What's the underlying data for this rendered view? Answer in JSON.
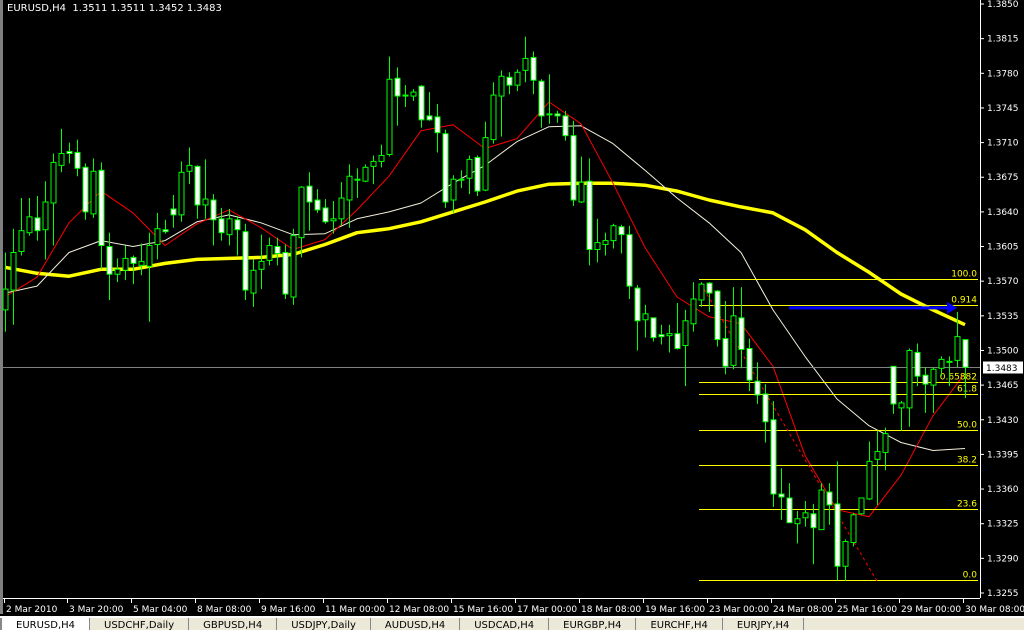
{
  "header": {
    "symbol": "EURUSD,H4",
    "ohlc": "1.3511 1.3511 1.3452 1.3483"
  },
  "tabs": [
    {
      "label": "EURUSD,H4",
      "active": true
    },
    {
      "label": "USDCHF,Daily"
    },
    {
      "label": "GBPUSD,H4"
    },
    {
      "label": "USDJPY,Daily"
    },
    {
      "label": "AUDUSD,H4"
    },
    {
      "label": "USDCAD,H4"
    },
    {
      "label": "EURGBP,H4"
    },
    {
      "label": "EURCHF,H4"
    },
    {
      "label": "EURJPY,H4"
    }
  ],
  "colors": {
    "background": "#000000",
    "candle_outline": "#00ff00",
    "bull_fill": "#000000",
    "bear_fill": "#ffffff",
    "ma_fast": "#ff0000",
    "ma_mid": "#f5f0dc",
    "ma_slow": "#ffff00",
    "fib": "#ffff00",
    "arrow": "#0000ff",
    "price_line": "#808080"
  },
  "chart_data": {
    "type": "candlestick",
    "symbol": "EURUSD",
    "timeframe": "H4",
    "ylim": [
      1.3255,
      1.385
    ],
    "y_ticks": [
      "1.3850",
      "1.3815",
      "1.3780",
      "1.3745",
      "1.3710",
      "1.3675",
      "1.3640",
      "1.3605",
      "1.3570",
      "1.3535",
      "1.3500",
      "1.3465",
      "1.3430",
      "1.3395",
      "1.3360",
      "1.3325",
      "1.3290",
      "1.3255"
    ],
    "x_ticks": [
      "2 Mar 2010",
      "3 Mar 20:00",
      "5 Mar 04:00",
      "8 Mar 08:00",
      "9 Mar 16:00",
      "11 Mar 00:00",
      "12 Mar 08:00",
      "15 Mar 16:00",
      "17 Mar 00:00",
      "18 Mar 08:00",
      "19 Mar 16:00",
      "23 Mar 00:00",
      "24 Mar 08:00",
      "25 Mar 16:00",
      "29 Mar 00:00",
      "30 Mar 08:00"
    ],
    "current_price": "1.3483",
    "candles_ohlc": [
      [
        1.3541,
        1.3599,
        1.3519,
        1.3562
      ],
      [
        1.3561,
        1.3623,
        1.3526,
        1.3599
      ],
      [
        1.36,
        1.3654,
        1.3596,
        1.3621
      ],
      [
        1.3619,
        1.3654,
        1.3616,
        1.3635
      ],
      [
        1.3634,
        1.3656,
        1.3611,
        1.3621
      ],
      [
        1.3622,
        1.3671,
        1.3592,
        1.365
      ],
      [
        1.3649,
        1.3699,
        1.3606,
        1.369
      ],
      [
        1.3687,
        1.3724,
        1.368,
        1.3699
      ],
      [
        1.3701,
        1.371,
        1.3689,
        1.3699
      ],
      [
        1.37,
        1.3713,
        1.3676,
        1.3684
      ],
      [
        1.3685,
        1.3689,
        1.3632,
        1.364
      ],
      [
        1.3638,
        1.3694,
        1.3634,
        1.3681
      ],
      [
        1.3682,
        1.369,
        1.3582,
        1.3606
      ],
      [
        1.3605,
        1.3619,
        1.3551,
        1.3577
      ],
      [
        1.3577,
        1.3593,
        1.3569,
        1.3582
      ],
      [
        1.3581,
        1.3606,
        1.3571,
        1.3593
      ],
      [
        1.3594,
        1.3596,
        1.3567,
        1.3588
      ],
      [
        1.3586,
        1.3608,
        1.3576,
        1.359
      ],
      [
        1.3585,
        1.3619,
        1.3529,
        1.3606
      ],
      [
        1.3607,
        1.3639,
        1.3592,
        1.3623
      ],
      [
        1.3622,
        1.3632,
        1.3618,
        1.362
      ],
      [
        1.3643,
        1.3657,
        1.3624,
        1.3637
      ],
      [
        1.3637,
        1.3691,
        1.363,
        1.368
      ],
      [
        1.3681,
        1.3705,
        1.3668,
        1.3687
      ],
      [
        1.3686,
        1.3687,
        1.3633,
        1.3647
      ],
      [
        1.3647,
        1.3693,
        1.3633,
        1.3653
      ],
      [
        1.3652,
        1.3658,
        1.3606,
        1.3632
      ],
      [
        1.3633,
        1.3644,
        1.3611,
        1.3619
      ],
      [
        1.3617,
        1.3643,
        1.3606,
        1.3633
      ],
      [
        1.3632,
        1.3636,
        1.3596,
        1.3622
      ],
      [
        1.362,
        1.3628,
        1.3551,
        1.3561
      ],
      [
        1.3558,
        1.3592,
        1.3544,
        1.3581
      ],
      [
        1.3582,
        1.3617,
        1.3562,
        1.359
      ],
      [
        1.3591,
        1.3614,
        1.3586,
        1.3606
      ],
      [
        1.3605,
        1.3614,
        1.3586,
        1.3598
      ],
      [
        1.3599,
        1.3607,
        1.3552,
        1.3557
      ],
      [
        1.3554,
        1.3623,
        1.3546,
        1.3616
      ],
      [
        1.3614,
        1.3666,
        1.3594,
        1.3665
      ],
      [
        1.3666,
        1.368,
        1.3621,
        1.365
      ],
      [
        1.3652,
        1.3663,
        1.3639,
        1.3642
      ],
      [
        1.3644,
        1.3653,
        1.3628,
        1.363
      ],
      [
        1.3631,
        1.3651,
        1.3618,
        1.3633
      ],
      [
        1.3633,
        1.367,
        1.3626,
        1.3654
      ],
      [
        1.3652,
        1.3688,
        1.3624,
        1.3676
      ],
      [
        1.3672,
        1.3684,
        1.3654,
        1.3673
      ],
      [
        1.3671,
        1.3688,
        1.367,
        1.3685
      ],
      [
        1.3686,
        1.3697,
        1.3668,
        1.3691
      ],
      [
        1.3691,
        1.3708,
        1.3685,
        1.3697
      ],
      [
        1.3698,
        1.3797,
        1.3696,
        1.3774
      ],
      [
        1.3775,
        1.3786,
        1.3727,
        1.3757
      ],
      [
        1.3757,
        1.3768,
        1.3746,
        1.3758
      ],
      [
        1.3757,
        1.3764,
        1.3752,
        1.3761
      ],
      [
        1.3767,
        1.3768,
        1.3725,
        1.3733
      ],
      [
        1.3737,
        1.3761,
        1.3732,
        1.3733
      ],
      [
        1.3736,
        1.3749,
        1.37,
        1.372
      ],
      [
        1.3719,
        1.3723,
        1.3644,
        1.365
      ],
      [
        1.3652,
        1.3677,
        1.3639,
        1.3673
      ],
      [
        1.3672,
        1.3682,
        1.3664,
        1.3673
      ],
      [
        1.3674,
        1.3697,
        1.3658,
        1.3693
      ],
      [
        1.3695,
        1.3697,
        1.3656,
        1.3661
      ],
      [
        1.3662,
        1.3731,
        1.3661,
        1.3715
      ],
      [
        1.3713,
        1.3771,
        1.3709,
        1.3758
      ],
      [
        1.3757,
        1.3783,
        1.3716,
        1.3777
      ],
      [
        1.3776,
        1.3781,
        1.3759,
        1.3768
      ],
      [
        1.3768,
        1.3784,
        1.3762,
        1.3781
      ],
      [
        1.3783,
        1.3817,
        1.3771,
        1.3795
      ],
      [
        1.3796,
        1.3802,
        1.3759,
        1.3773
      ],
      [
        1.3772,
        1.3774,
        1.3725,
        1.3737
      ],
      [
        1.3738,
        1.3779,
        1.3729,
        1.3739
      ],
      [
        1.3739,
        1.3742,
        1.373,
        1.3737
      ],
      [
        1.3737,
        1.3742,
        1.3712,
        1.3717
      ],
      [
        1.3717,
        1.3732,
        1.3646,
        1.3652
      ],
      [
        1.365,
        1.3696,
        1.3649,
        1.367
      ],
      [
        1.3671,
        1.3694,
        1.3586,
        1.3602
      ],
      [
        1.3602,
        1.3633,
        1.3589,
        1.3609
      ],
      [
        1.3607,
        1.3619,
        1.3596,
        1.3611
      ],
      [
        1.3611,
        1.3628,
        1.3603,
        1.3626
      ],
      [
        1.3625,
        1.3627,
        1.3598,
        1.3617
      ],
      [
        1.3617,
        1.3626,
        1.3552,
        1.3565
      ],
      [
        1.3563,
        1.3566,
        1.35,
        1.353
      ],
      [
        1.3531,
        1.3546,
        1.3513,
        1.3537
      ],
      [
        1.3533,
        1.3533,
        1.3509,
        1.3513
      ],
      [
        1.3516,
        1.3526,
        1.3506,
        1.3514
      ],
      [
        1.3515,
        1.3526,
        1.3498,
        1.3517
      ],
      [
        1.3517,
        1.3548,
        1.3501,
        1.3502
      ],
      [
        1.3505,
        1.3541,
        1.3464,
        1.353
      ],
      [
        1.3527,
        1.3569,
        1.3519,
        1.3552
      ],
      [
        1.3551,
        1.3569,
        1.3544,
        1.3567
      ],
      [
        1.3568,
        1.3569,
        1.3539,
        1.3558
      ],
      [
        1.356,
        1.3561,
        1.3504,
        1.3511
      ],
      [
        1.3512,
        1.355,
        1.3476,
        1.3484
      ],
      [
        1.3485,
        1.3564,
        1.3481,
        1.3535
      ],
      [
        1.3533,
        1.3564,
        1.3482,
        1.3501
      ],
      [
        1.3502,
        1.3512,
        1.3459,
        1.347
      ],
      [
        1.3469,
        1.3488,
        1.3446,
        1.3455
      ],
      [
        1.3456,
        1.3466,
        1.3407,
        1.3428
      ],
      [
        1.343,
        1.3449,
        1.3342,
        1.3355
      ],
      [
        1.3355,
        1.3381,
        1.3329,
        1.3352
      ],
      [
        1.3351,
        1.3366,
        1.3326,
        1.3326
      ],
      [
        1.3325,
        1.3338,
        1.3305,
        1.333
      ],
      [
        1.3331,
        1.3348,
        1.3322,
        1.3336
      ],
      [
        1.3335,
        1.3345,
        1.3284,
        1.3321
      ],
      [
        1.3319,
        1.3366,
        1.3319,
        1.3359
      ],
      [
        1.3357,
        1.3366,
        1.3324,
        1.3344
      ],
      [
        1.3345,
        1.3388,
        1.3268,
        1.3282
      ],
      [
        1.3282,
        1.3309,
        1.3267,
        1.3307
      ],
      [
        1.3306,
        1.3336,
        1.3302,
        1.3334
      ],
      [
        1.3335,
        1.3351,
        1.3334,
        1.3351
      ],
      [
        1.335,
        1.3408,
        1.3349,
        1.3388
      ],
      [
        1.339,
        1.3419,
        1.3344,
        1.3398
      ],
      [
        1.3397,
        1.3422,
        1.3379,
        1.3416
      ],
      [
        1.3484,
        1.3484,
        1.3436,
        1.3446
      ],
      [
        1.3442,
        1.3449,
        1.3419,
        1.3447
      ],
      [
        1.3442,
        1.3502,
        1.3423,
        1.35
      ],
      [
        1.3498,
        1.3507,
        1.3464,
        1.3474
      ],
      [
        1.3475,
        1.3483,
        1.3437,
        1.3466
      ],
      [
        1.3465,
        1.3483,
        1.3437,
        1.3481
      ],
      [
        1.3482,
        1.3494,
        1.3474,
        1.3491
      ],
      [
        1.3488,
        1.3494,
        1.3464,
        1.3489
      ],
      [
        1.349,
        1.3539,
        1.3483,
        1.3514
      ],
      [
        1.3511,
        1.3511,
        1.3452,
        1.3483
      ]
    ],
    "moving_averages": {
      "sample_step_bars": 4,
      "fast_red": [
        1.3554,
        1.3574,
        1.3629,
        1.3661,
        1.3639,
        1.3606,
        1.3628,
        1.3642,
        1.3624,
        1.3602,
        1.3612,
        1.3642,
        1.3676,
        1.3722,
        1.3728,
        1.3704,
        1.3714,
        1.3751,
        1.3729,
        1.3669,
        1.3604,
        1.3554,
        1.3534,
        1.3527,
        1.3484,
        1.3394,
        1.3339,
        1.3332,
        1.3374,
        1.3434,
        1.3477
      ],
      "mid_white": [
        1.3558,
        1.3565,
        1.3599,
        1.3611,
        1.3605,
        1.3611,
        1.363,
        1.3637,
        1.3629,
        1.3617,
        1.3618,
        1.3633,
        1.364,
        1.3649,
        1.3669,
        1.3687,
        1.3711,
        1.3726,
        1.3727,
        1.3709,
        1.3682,
        1.3654,
        1.3629,
        1.3599,
        1.3541,
        1.3494,
        1.3451,
        1.3424,
        1.3407,
        1.3399,
        1.3401
      ],
      "slow_yellow": [
        1.3584,
        1.3578,
        1.3575,
        1.3582,
        1.3582,
        1.3588,
        1.3592,
        1.3593,
        1.3594,
        1.3597,
        1.3607,
        1.3619,
        1.3623,
        1.363,
        1.364,
        1.365,
        1.3661,
        1.3668,
        1.3669,
        1.3669,
        1.3667,
        1.3661,
        1.3652,
        1.3645,
        1.3639,
        1.3622,
        1.3599,
        1.3579,
        1.3557,
        1.3541,
        1.3526
      ]
    },
    "fibonacci": {
      "high": 1.3572,
      "low": 1.3268,
      "start_bar": 87,
      "levels": [
        {
          "ratio": 1.0,
          "label": "100.0"
        },
        {
          "ratio": 0.914,
          "label": "0.914"
        },
        {
          "ratio": 0.65882,
          "label": "0.65882"
        },
        {
          "ratio": 0.618,
          "label": "61.8"
        },
        {
          "ratio": 0.5,
          "label": "50.0"
        },
        {
          "ratio": 0.382,
          "label": "38.2"
        },
        {
          "ratio": 0.236,
          "label": "23.6"
        },
        {
          "ratio": 0.0,
          "label": "0.0"
        }
      ]
    },
    "trendline_red_dashed": {
      "from_bar": 87,
      "from_price": 1.3567,
      "to_bar": 109,
      "to_price": 1.3267
    },
    "arrow_blue": {
      "from_bar": 98,
      "to_bar": 119,
      "price": 1.3543
    }
  }
}
